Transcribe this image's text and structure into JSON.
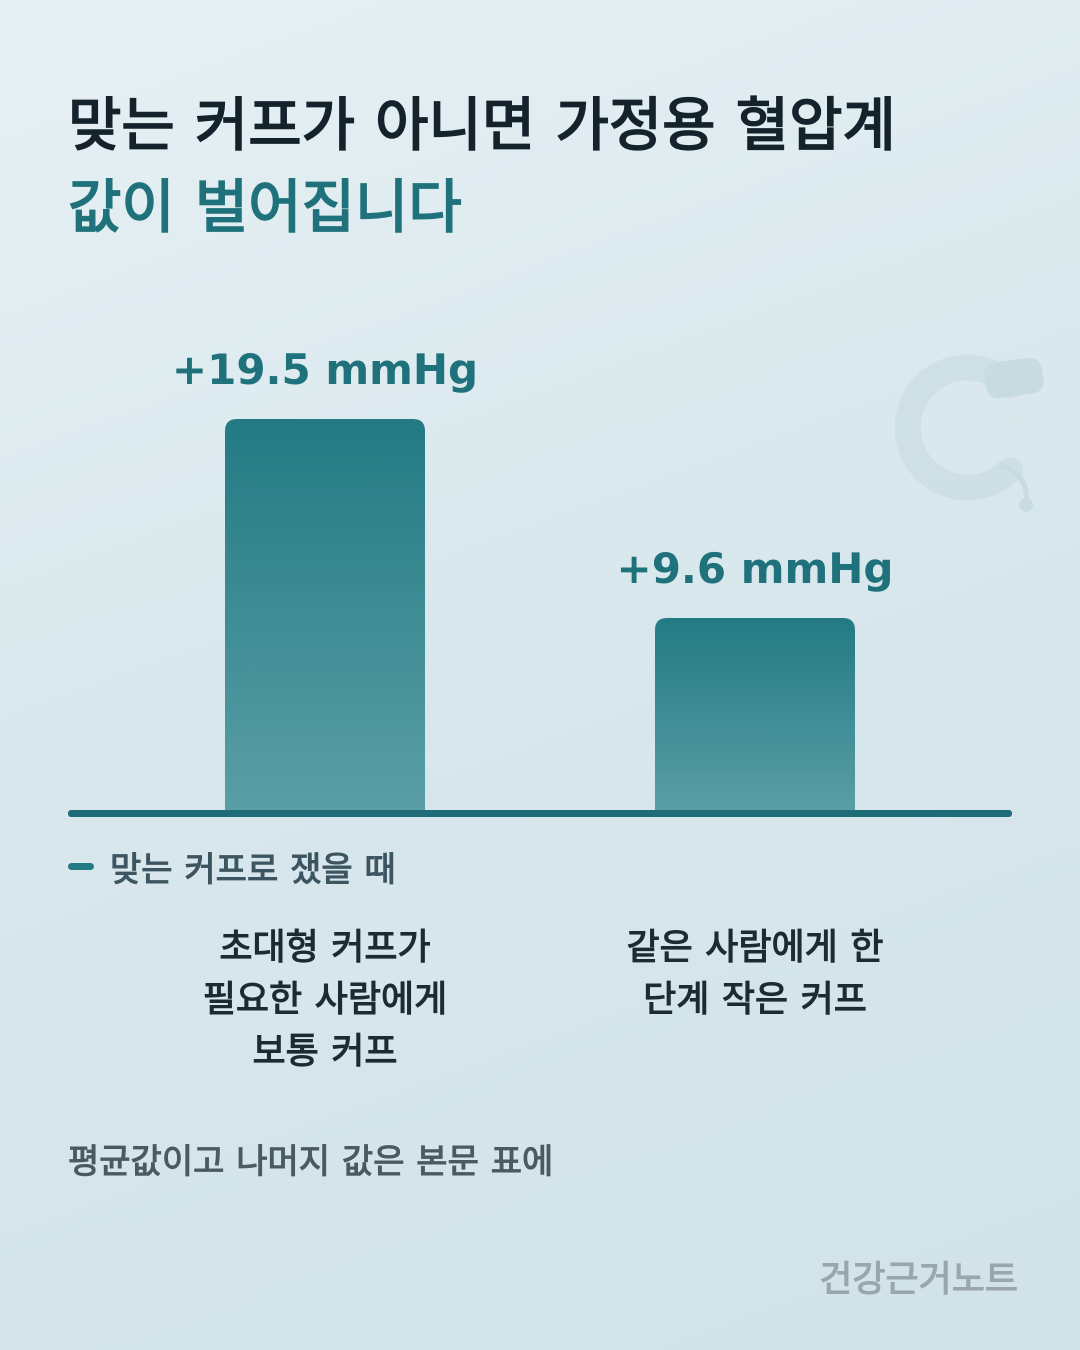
{
  "chart_data": {
    "type": "bar",
    "title": "맞는 커프가 아니면 가정용 혈압계",
    "subtitle": "값이 벌어집니다",
    "categories": [
      "초대형 커프가\n필요한 사람에게\n보통 커프",
      "같은 사람에게 한\n단계 작은 커프"
    ],
    "series": [
      {
        "name": "맞는 커프로 쟀을 때",
        "color": "#237a83",
        "values": [
          19.5,
          9.6
        ],
        "value_labels": [
          "+19.5 mmHg",
          "+9.6 mmHg"
        ]
      }
    ],
    "note": "평균값이고 나머지 값은 본문 표에",
    "brand": "건강근거노트"
  }
}
